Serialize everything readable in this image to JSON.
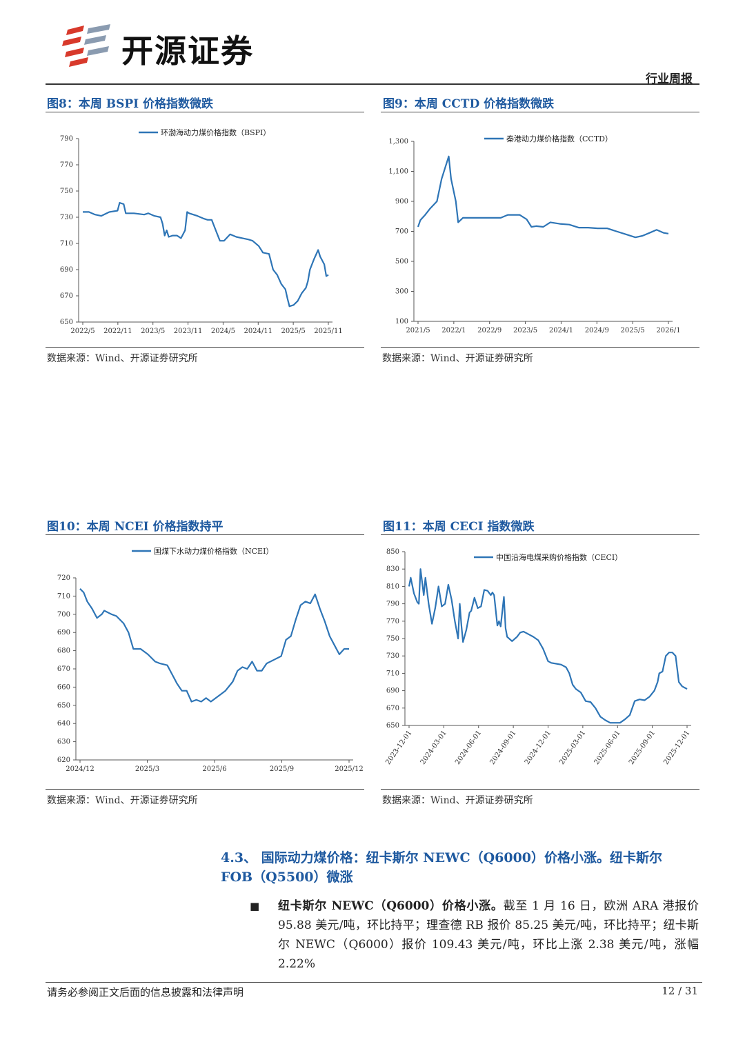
{
  "header": {
    "brand": "开源证券",
    "report_type": "行业周报",
    "logo_colors": [
      "#d8392b",
      "#8a9bb0"
    ]
  },
  "figures": [
    {
      "title": "图8：本周 BSPI 价格指数微跌",
      "source": "数据来源：Wind、开源证券研究所",
      "chart_data": {
        "type": "line",
        "series_name": "环渤海动力煤价格指数（BSPI）",
        "y_ticks": [
          "790",
          "770",
          "750",
          "730",
          "710",
          "690",
          "670",
          "650"
        ],
        "x_ticks": [
          "2022/5",
          "2022/11",
          "2023/5",
          "2023/11",
          "2024/5",
          "2024/11",
          "2025/5",
          "2025/11"
        ],
        "ylim": [
          650,
          790
        ],
        "color": "#2e75b6",
        "points": [
          [
            0,
            734
          ],
          [
            0.3,
            734
          ],
          [
            0.6,
            732
          ],
          [
            0.9,
            731
          ],
          [
            1.3,
            734
          ],
          [
            1.7,
            735
          ],
          [
            1.8,
            741
          ],
          [
            2.0,
            740
          ],
          [
            2.1,
            733
          ],
          [
            2.5,
            733
          ],
          [
            3.0,
            732
          ],
          [
            3.2,
            733
          ],
          [
            3.5,
            731
          ],
          [
            3.8,
            730
          ],
          [
            3.9,
            725
          ],
          [
            4.0,
            716
          ],
          [
            4.1,
            720
          ],
          [
            4.2,
            715
          ],
          [
            4.4,
            716
          ],
          [
            4.6,
            716
          ],
          [
            4.8,
            714
          ],
          [
            5.0,
            720
          ],
          [
            5.1,
            734
          ],
          [
            5.2,
            733
          ],
          [
            5.4,
            732
          ],
          [
            5.6,
            731
          ],
          [
            5.9,
            729
          ],
          [
            6.1,
            728
          ],
          [
            6.3,
            728
          ],
          [
            6.5,
            720
          ],
          [
            6.7,
            712
          ],
          [
            6.9,
            712
          ],
          [
            7.2,
            717
          ],
          [
            7.5,
            715
          ],
          [
            7.8,
            714
          ],
          [
            8.1,
            713
          ],
          [
            8.3,
            712
          ],
          [
            8.6,
            708
          ],
          [
            8.8,
            703
          ],
          [
            9.1,
            702
          ],
          [
            9.3,
            690
          ],
          [
            9.5,
            686
          ],
          [
            9.7,
            679
          ],
          [
            9.9,
            675
          ],
          [
            10.0,
            668
          ],
          [
            10.1,
            662
          ],
          [
            10.3,
            663
          ],
          [
            10.5,
            666
          ],
          [
            10.7,
            672
          ],
          [
            10.9,
            676
          ],
          [
            11.0,
            681
          ],
          [
            11.1,
            690
          ],
          [
            11.3,
            698
          ],
          [
            11.5,
            705
          ],
          [
            11.6,
            700
          ],
          [
            11.8,
            694
          ],
          [
            11.9,
            685
          ],
          [
            12.0,
            686
          ]
        ]
      }
    },
    {
      "title": "图9：本周 CCTD 价格指数微跌",
      "source": "数据来源：Wind、开源证券研究所",
      "chart_data": {
        "type": "line",
        "series_name": "秦港动力煤价格指数（CCTD）",
        "y_ticks": [
          "1,300",
          "1,100",
          "900",
          "700",
          "500",
          "300",
          "100"
        ],
        "x_ticks": [
          "2021/5",
          "2022/1",
          "2022/9",
          "2023/5",
          "2024/1",
          "2024/9",
          "2025/5",
          "2026/1"
        ],
        "ylim": [
          100,
          1300
        ],
        "color": "#2e75b6",
        "points": [
          [
            0,
            730
          ],
          [
            0.1,
            775
          ],
          [
            0.3,
            810
          ],
          [
            0.5,
            850
          ],
          [
            0.8,
            900
          ],
          [
            1.0,
            1050
          ],
          [
            1.2,
            1150
          ],
          [
            1.3,
            1200
          ],
          [
            1.4,
            1050
          ],
          [
            1.6,
            900
          ],
          [
            1.7,
            760
          ],
          [
            1.9,
            790
          ],
          [
            2.5,
            790
          ],
          [
            3.0,
            790
          ],
          [
            3.5,
            790
          ],
          [
            3.8,
            810
          ],
          [
            4.3,
            810
          ],
          [
            4.6,
            780
          ],
          [
            4.8,
            730
          ],
          [
            5.0,
            735
          ],
          [
            5.3,
            730
          ],
          [
            5.6,
            760
          ],
          [
            6.0,
            750
          ],
          [
            6.4,
            745
          ],
          [
            6.8,
            725
          ],
          [
            7.2,
            725
          ],
          [
            7.6,
            720
          ],
          [
            8.0,
            720
          ],
          [
            8.4,
            700
          ],
          [
            8.8,
            680
          ],
          [
            9.2,
            660
          ],
          [
            9.5,
            670
          ],
          [
            9.8,
            690
          ],
          [
            10.1,
            710
          ],
          [
            10.4,
            690
          ],
          [
            10.6,
            685
          ]
        ]
      }
    },
    {
      "title": "图10：本周 NCEI 价格指数持平",
      "source": "数据来源：Wind、开源证券研究所",
      "chart_data": {
        "type": "line",
        "series_name": "国煤下水动力煤价格指数（NCEI）",
        "y_ticks": [
          "720",
          "710",
          "700",
          "690",
          "680",
          "670",
          "660",
          "650",
          "640",
          "630",
          "620"
        ],
        "x_ticks": [
          "2024/12",
          "2025/3",
          "2025/6",
          "2025/9",
          "2025/12"
        ],
        "ylim": [
          620,
          720
        ],
        "color": "#2e75b6",
        "points": [
          [
            0,
            714
          ],
          [
            0.15,
            712
          ],
          [
            0.3,
            707
          ],
          [
            0.5,
            703
          ],
          [
            0.7,
            698
          ],
          [
            0.9,
            700
          ],
          [
            1.0,
            702
          ],
          [
            1.3,
            700
          ],
          [
            1.5,
            699
          ],
          [
            1.8,
            695
          ],
          [
            2.0,
            690
          ],
          [
            2.2,
            681
          ],
          [
            2.5,
            681
          ],
          [
            2.8,
            678
          ],
          [
            3.1,
            674
          ],
          [
            3.3,
            673
          ],
          [
            3.6,
            672
          ],
          [
            3.8,
            667
          ],
          [
            4.0,
            662
          ],
          [
            4.2,
            658
          ],
          [
            4.4,
            658
          ],
          [
            4.6,
            652
          ],
          [
            4.8,
            653
          ],
          [
            5.0,
            652
          ],
          [
            5.2,
            654
          ],
          [
            5.4,
            652
          ],
          [
            5.7,
            655
          ],
          [
            6.0,
            658
          ],
          [
            6.3,
            663
          ],
          [
            6.5,
            669
          ],
          [
            6.7,
            671
          ],
          [
            6.9,
            670
          ],
          [
            7.1,
            674
          ],
          [
            7.3,
            669
          ],
          [
            7.5,
            669
          ],
          [
            7.7,
            673
          ],
          [
            8.0,
            675
          ],
          [
            8.3,
            677
          ],
          [
            8.5,
            686
          ],
          [
            8.7,
            688
          ],
          [
            8.9,
            697
          ],
          [
            9.1,
            705
          ],
          [
            9.3,
            707
          ],
          [
            9.5,
            706
          ],
          [
            9.7,
            711
          ],
          [
            9.9,
            703
          ],
          [
            10.1,
            696
          ],
          [
            10.3,
            688
          ],
          [
            10.5,
            683
          ],
          [
            10.7,
            678
          ],
          [
            10.9,
            681
          ],
          [
            11.1,
            681
          ]
        ]
      }
    },
    {
      "title": "图11：本周 CECI 指数微跌",
      "source": "数据来源：Wind、开源证券研究所",
      "chart_data": {
        "type": "line",
        "series_name": "中国沿海电煤采购价格指数（CECI）",
        "y_ticks": [
          "850",
          "830",
          "810",
          "790",
          "770",
          "750",
          "730",
          "710",
          "690",
          "670",
          "650"
        ],
        "x_ticks": [
          "2023-12-01",
          "2024-03-01",
          "2024-06-01",
          "2024-09-01",
          "2024-12-01",
          "2025-03-01",
          "2025-06-01",
          "2025-09-01",
          "2025-12-01"
        ],
        "ylim": [
          650,
          850
        ],
        "color": "#2e75b6",
        "points": [
          [
            0,
            810
          ],
          [
            0.05,
            820
          ],
          [
            0.15,
            802
          ],
          [
            0.25,
            792
          ],
          [
            0.3,
            790
          ],
          [
            0.35,
            830
          ],
          [
            0.45,
            800
          ],
          [
            0.5,
            820
          ],
          [
            0.6,
            790
          ],
          [
            0.7,
            767
          ],
          [
            0.8,
            785
          ],
          [
            0.9,
            810
          ],
          [
            1.0,
            787
          ],
          [
            1.1,
            790
          ],
          [
            1.2,
            812
          ],
          [
            1.3,
            795
          ],
          [
            1.4,
            770
          ],
          [
            1.5,
            750
          ],
          [
            1.55,
            790
          ],
          [
            1.6,
            765
          ],
          [
            1.65,
            746
          ],
          [
            1.75,
            760
          ],
          [
            1.85,
            780
          ],
          [
            1.9,
            782
          ],
          [
            2.0,
            797
          ],
          [
            2.1,
            785
          ],
          [
            2.2,
            787
          ],
          [
            2.3,
            806
          ],
          [
            2.4,
            805
          ],
          [
            2.5,
            800
          ],
          [
            2.55,
            803
          ],
          [
            2.6,
            800
          ],
          [
            2.7,
            765
          ],
          [
            2.75,
            770
          ],
          [
            2.8,
            764
          ],
          [
            2.9,
            798
          ],
          [
            2.95,
            762
          ],
          [
            3.0,
            752
          ],
          [
            3.15,
            747
          ],
          [
            3.3,
            752
          ],
          [
            3.4,
            757
          ],
          [
            3.5,
            758
          ],
          [
            3.65,
            755
          ],
          [
            3.8,
            752
          ],
          [
            3.95,
            748
          ],
          [
            4.1,
            738
          ],
          [
            4.25,
            724
          ],
          [
            4.35,
            722
          ],
          [
            4.5,
            721
          ],
          [
            4.65,
            720
          ],
          [
            4.8,
            717
          ],
          [
            4.9,
            710
          ],
          [
            5.0,
            697
          ],
          [
            5.1,
            692
          ],
          [
            5.25,
            688
          ],
          [
            5.4,
            678
          ],
          [
            5.55,
            677
          ],
          [
            5.7,
            670
          ],
          [
            5.85,
            660
          ],
          [
            6.0,
            656
          ],
          [
            6.15,
            653
          ],
          [
            6.3,
            653
          ],
          [
            6.45,
            653
          ],
          [
            6.6,
            657
          ],
          [
            6.75,
            662
          ],
          [
            6.9,
            678
          ],
          [
            7.05,
            680
          ],
          [
            7.2,
            679
          ],
          [
            7.35,
            683
          ],
          [
            7.5,
            690
          ],
          [
            7.6,
            700
          ],
          [
            7.65,
            710
          ],
          [
            7.75,
            712
          ],
          [
            7.85,
            730
          ],
          [
            7.95,
            734
          ],
          [
            8.05,
            734
          ],
          [
            8.15,
            730
          ],
          [
            8.25,
            700
          ],
          [
            8.35,
            695
          ],
          [
            8.5,
            692
          ]
        ]
      }
    }
  ],
  "section": {
    "title": "4.3、 国际动力煤价格：纽卡斯尔 NEWC（Q6000）价格小涨。纽卡斯尔 FOB（Q5500）微涨",
    "bullet": "■",
    "para_bold": "纽卡斯尔 NEWC（Q6000）价格小涨。",
    "para_text": "截至 1 月 16 日，欧洲 ARA 港报价 95.88 美元/吨，环比持平；理查德 RB 报价 85.25 美元/吨，环比持平；纽卡斯尔 NEWC（Q6000）报价 109.43 美元/吨，环比上涨 2.38 美元/吨，涨幅 2.22%"
  },
  "footer": {
    "disclaimer": "请务必参阅正文后面的信息披露和法律声明",
    "page": "12 / 31"
  }
}
